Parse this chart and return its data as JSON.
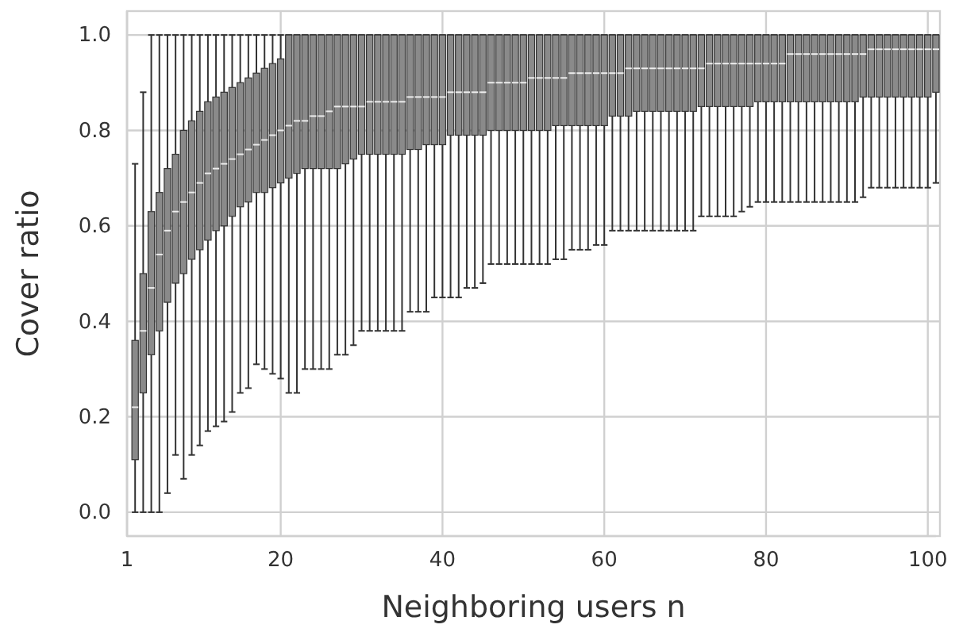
{
  "chart_data": {
    "type": "box",
    "xlabel": "Neighboring users n",
    "ylabel": "Cover ratio",
    "grid": true,
    "categories": [
      "1",
      null,
      null,
      null,
      null,
      null,
      null,
      null,
      null,
      null,
      null,
      null,
      null,
      null,
      null,
      null,
      null,
      null,
      null,
      "20",
      null,
      null,
      null,
      null,
      null,
      null,
      null,
      null,
      null,
      null,
      null,
      null,
      null,
      null,
      null,
      null,
      null,
      null,
      null,
      "40",
      null,
      null,
      null,
      null,
      null,
      null,
      null,
      null,
      null,
      null,
      null,
      null,
      null,
      null,
      null,
      null,
      null,
      null,
      null,
      "60",
      null,
      null,
      null,
      null,
      null,
      null,
      null,
      null,
      null,
      null,
      null,
      null,
      null,
      null,
      null,
      null,
      null,
      null,
      null,
      "80",
      null,
      null,
      null,
      null,
      null,
      null,
      null,
      null,
      null,
      null,
      null,
      null,
      null,
      null,
      null,
      null,
      null,
      null,
      null,
      "100",
      null
    ],
    "ylim": [
      -0.05,
      1.05
    ],
    "yticks": [
      {
        "value": 0,
        "label": "0.0"
      },
      {
        "value": 0.2,
        "label": "0.2"
      },
      {
        "value": 0.4,
        "label": "0.4"
      },
      {
        "value": 0.6,
        "label": "0.6"
      },
      {
        "value": 0.8,
        "label": "0.8"
      },
      {
        "value": 1,
        "label": "1.0"
      }
    ],
    "series": [
      {
        "color": "#8a8a8a",
        "boxes": [
          null,
          {
            "low": 0,
            "q1": 0.11,
            "median": 0.22,
            "q3": 0.36,
            "high": 0.73
          },
          {
            "low": 0,
            "q1": 0.25,
            "median": 0.38,
            "q3": 0.5,
            "high": 0.88
          },
          {
            "low": 0,
            "q1": 0.33,
            "median": 0.47,
            "q3": 0.63,
            "high": 1
          },
          {
            "low": 0,
            "q1": 0.38,
            "median": 0.54,
            "q3": 0.67,
            "high": 1
          },
          {
            "low": 0.04,
            "q1": 0.44,
            "median": 0.59,
            "q3": 0.72,
            "high": 1
          },
          {
            "low": 0.12,
            "q1": 0.48,
            "median": 0.63,
            "q3": 0.75,
            "high": 1
          },
          {
            "low": 0.07,
            "q1": 0.5,
            "median": 0.65,
            "q3": 0.8,
            "high": 1
          },
          {
            "low": 0.12,
            "q1": 0.53,
            "median": 0.67,
            "q3": 0.82,
            "high": 1
          },
          {
            "low": 0.14,
            "q1": 0.55,
            "median": 0.69,
            "q3": 0.84,
            "high": 1
          },
          {
            "low": 0.17,
            "q1": 0.57,
            "median": 0.71,
            "q3": 0.86,
            "high": 1
          },
          {
            "low": 0.18,
            "q1": 0.59,
            "median": 0.72,
            "q3": 0.87,
            "high": 1
          },
          {
            "low": 0.19,
            "q1": 0.6,
            "median": 0.73,
            "q3": 0.88,
            "high": 1
          },
          {
            "low": 0.21,
            "q1": 0.62,
            "median": 0.74,
            "q3": 0.89,
            "high": 1
          },
          {
            "low": 0.25,
            "q1": 0.64,
            "median": 0.75,
            "q3": 0.9,
            "high": 1
          },
          {
            "low": 0.26,
            "q1": 0.65,
            "median": 0.76,
            "q3": 0.91,
            "high": 1
          },
          {
            "low": 0.31,
            "q1": 0.67,
            "median": 0.77,
            "q3": 0.92,
            "high": 1
          },
          {
            "low": 0.3,
            "q1": 0.67,
            "median": 0.78,
            "q3": 0.93,
            "high": 1
          },
          {
            "low": 0.29,
            "q1": 0.68,
            "median": 0.79,
            "q3": 0.94,
            "high": 1
          },
          {
            "low": 0.28,
            "q1": 0.69,
            "median": 0.8,
            "q3": 0.95,
            "high": 1
          },
          {
            "low": 0.25,
            "q1": 0.7,
            "median": 0.81,
            "q3": 1,
            "high": 1
          },
          {
            "low": 0.25,
            "q1": 0.71,
            "median": 0.82,
            "q3": 1,
            "high": 1
          },
          {
            "low": 0.3,
            "q1": 0.72,
            "median": 0.82,
            "q3": 1,
            "high": 1
          },
          {
            "low": 0.3,
            "q1": 0.72,
            "median": 0.83,
            "q3": 1,
            "high": 1
          },
          {
            "low": 0.3,
            "q1": 0.72,
            "median": 0.83,
            "q3": 1,
            "high": 1
          },
          {
            "low": 0.3,
            "q1": 0.72,
            "median": 0.84,
            "q3": 1,
            "high": 1
          },
          {
            "low": 0.33,
            "q1": 0.72,
            "median": 0.85,
            "q3": 1,
            "high": 1
          },
          {
            "low": 0.33,
            "q1": 0.73,
            "median": 0.85,
            "q3": 1,
            "high": 1
          },
          {
            "low": 0.35,
            "q1": 0.74,
            "median": 0.85,
            "q3": 1,
            "high": 1
          },
          {
            "low": 0.38,
            "q1": 0.75,
            "median": 0.85,
            "q3": 1,
            "high": 1
          },
          {
            "low": 0.38,
            "q1": 0.75,
            "median": 0.86,
            "q3": 1,
            "high": 1
          },
          {
            "low": 0.38,
            "q1": 0.75,
            "median": 0.86,
            "q3": 1,
            "high": 1
          },
          {
            "low": 0.38,
            "q1": 0.75,
            "median": 0.86,
            "q3": 1,
            "high": 1
          },
          {
            "low": 0.38,
            "q1": 0.75,
            "median": 0.86,
            "q3": 1,
            "high": 1
          },
          {
            "low": 0.38,
            "q1": 0.75,
            "median": 0.86,
            "q3": 1,
            "high": 1
          },
          {
            "low": 0.42,
            "q1": 0.76,
            "median": 0.87,
            "q3": 1,
            "high": 1
          },
          {
            "low": 0.42,
            "q1": 0.76,
            "median": 0.87,
            "q3": 1,
            "high": 1
          },
          {
            "low": 0.42,
            "q1": 0.77,
            "median": 0.87,
            "q3": 1,
            "high": 1
          },
          {
            "low": 0.45,
            "q1": 0.77,
            "median": 0.87,
            "q3": 1,
            "high": 1
          },
          {
            "low": 0.45,
            "q1": 0.77,
            "median": 0.87,
            "q3": 1,
            "high": 1
          },
          {
            "low": 0.45,
            "q1": 0.79,
            "median": 0.88,
            "q3": 1,
            "high": 1
          },
          {
            "low": 0.45,
            "q1": 0.79,
            "median": 0.88,
            "q3": 1,
            "high": 1
          },
          {
            "low": 0.47,
            "q1": 0.79,
            "median": 0.88,
            "q3": 1,
            "high": 1
          },
          {
            "low": 0.47,
            "q1": 0.79,
            "median": 0.88,
            "q3": 1,
            "high": 1
          },
          {
            "low": 0.48,
            "q1": 0.79,
            "median": 0.88,
            "q3": 1,
            "high": 1
          },
          {
            "low": 0.52,
            "q1": 0.8,
            "median": 0.9,
            "q3": 1,
            "high": 1
          },
          {
            "low": 0.52,
            "q1": 0.8,
            "median": 0.9,
            "q3": 1,
            "high": 1
          },
          {
            "low": 0.52,
            "q1": 0.8,
            "median": 0.9,
            "q3": 1,
            "high": 1
          },
          {
            "low": 0.52,
            "q1": 0.8,
            "median": 0.9,
            "q3": 1,
            "high": 1
          },
          {
            "low": 0.52,
            "q1": 0.8,
            "median": 0.9,
            "q3": 1,
            "high": 1
          },
          {
            "low": 0.52,
            "q1": 0.8,
            "median": 0.91,
            "q3": 1,
            "high": 1
          },
          {
            "low": 0.52,
            "q1": 0.8,
            "median": 0.91,
            "q3": 1,
            "high": 1
          },
          {
            "low": 0.52,
            "q1": 0.8,
            "median": 0.91,
            "q3": 1,
            "high": 1
          },
          {
            "low": 0.53,
            "q1": 0.81,
            "median": 0.91,
            "q3": 1,
            "high": 1
          },
          {
            "low": 0.53,
            "q1": 0.81,
            "median": 0.91,
            "q3": 1,
            "high": 1
          },
          {
            "low": 0.55,
            "q1": 0.81,
            "median": 0.92,
            "q3": 1,
            "high": 1
          },
          {
            "low": 0.55,
            "q1": 0.81,
            "median": 0.92,
            "q3": 1,
            "high": 1
          },
          {
            "low": 0.55,
            "q1": 0.81,
            "median": 0.92,
            "q3": 1,
            "high": 1
          },
          {
            "low": 0.56,
            "q1": 0.81,
            "median": 0.92,
            "q3": 1,
            "high": 1
          },
          {
            "low": 0.56,
            "q1": 0.81,
            "median": 0.92,
            "q3": 1,
            "high": 1
          },
          {
            "low": 0.59,
            "q1": 0.83,
            "median": 0.92,
            "q3": 1,
            "high": 1
          },
          {
            "low": 0.59,
            "q1": 0.83,
            "median": 0.92,
            "q3": 1,
            "high": 1
          },
          {
            "low": 0.59,
            "q1": 0.83,
            "median": 0.93,
            "q3": 1,
            "high": 1
          },
          {
            "low": 0.59,
            "q1": 0.84,
            "median": 0.93,
            "q3": 1,
            "high": 1
          },
          {
            "low": 0.59,
            "q1": 0.84,
            "median": 0.93,
            "q3": 1,
            "high": 1
          },
          {
            "low": 0.59,
            "q1": 0.84,
            "median": 0.93,
            "q3": 1,
            "high": 1
          },
          {
            "low": 0.59,
            "q1": 0.84,
            "median": 0.93,
            "q3": 1,
            "high": 1
          },
          {
            "low": 0.59,
            "q1": 0.84,
            "median": 0.93,
            "q3": 1,
            "high": 1
          },
          {
            "low": 0.59,
            "q1": 0.84,
            "median": 0.93,
            "q3": 1,
            "high": 1
          },
          {
            "low": 0.59,
            "q1": 0.84,
            "median": 0.93,
            "q3": 1,
            "high": 1
          },
          {
            "low": 0.59,
            "q1": 0.84,
            "median": 0.93,
            "q3": 1,
            "high": 1
          },
          {
            "low": 0.62,
            "q1": 0.85,
            "median": 0.93,
            "q3": 1,
            "high": 1
          },
          {
            "low": 0.62,
            "q1": 0.85,
            "median": 0.94,
            "q3": 1,
            "high": 1
          },
          {
            "low": 0.62,
            "q1": 0.85,
            "median": 0.94,
            "q3": 1,
            "high": 1
          },
          {
            "low": 0.62,
            "q1": 0.85,
            "median": 0.94,
            "q3": 1,
            "high": 1
          },
          {
            "low": 0.62,
            "q1": 0.85,
            "median": 0.94,
            "q3": 1,
            "high": 1
          },
          {
            "low": 0.63,
            "q1": 0.85,
            "median": 0.94,
            "q3": 1,
            "high": 1
          },
          {
            "low": 0.64,
            "q1": 0.85,
            "median": 0.94,
            "q3": 1,
            "high": 1
          },
          {
            "low": 0.65,
            "q1": 0.86,
            "median": 0.94,
            "q3": 1,
            "high": 1
          },
          {
            "low": 0.65,
            "q1": 0.86,
            "median": 0.94,
            "q3": 1,
            "high": 1
          },
          {
            "low": 0.65,
            "q1": 0.86,
            "median": 0.94,
            "q3": 1,
            "high": 1
          },
          {
            "low": 0.65,
            "q1": 0.86,
            "median": 0.94,
            "q3": 1,
            "high": 1
          },
          {
            "low": 0.65,
            "q1": 0.86,
            "median": 0.96,
            "q3": 1,
            "high": 1
          },
          {
            "low": 0.65,
            "q1": 0.86,
            "median": 0.96,
            "q3": 1,
            "high": 1
          },
          {
            "low": 0.65,
            "q1": 0.86,
            "median": 0.96,
            "q3": 1,
            "high": 1
          },
          {
            "low": 0.65,
            "q1": 0.86,
            "median": 0.96,
            "q3": 1,
            "high": 1
          },
          {
            "low": 0.65,
            "q1": 0.86,
            "median": 0.96,
            "q3": 1,
            "high": 1
          },
          {
            "low": 0.65,
            "q1": 0.86,
            "median": 0.96,
            "q3": 1,
            "high": 1
          },
          {
            "low": 0.65,
            "q1": 0.86,
            "median": 0.96,
            "q3": 1,
            "high": 1
          },
          {
            "low": 0.65,
            "q1": 0.86,
            "median": 0.96,
            "q3": 1,
            "high": 1
          },
          {
            "low": 0.65,
            "q1": 0.86,
            "median": 0.96,
            "q3": 1,
            "high": 1
          },
          {
            "low": 0.66,
            "q1": 0.87,
            "median": 0.96,
            "q3": 1,
            "high": 1
          },
          {
            "low": 0.68,
            "q1": 0.87,
            "median": 0.97,
            "q3": 1,
            "high": 1
          },
          {
            "low": 0.68,
            "q1": 0.87,
            "median": 0.97,
            "q3": 1,
            "high": 1
          },
          {
            "low": 0.68,
            "q1": 0.87,
            "median": 0.97,
            "q3": 1,
            "high": 1
          },
          {
            "low": 0.68,
            "q1": 0.87,
            "median": 0.97,
            "q3": 1,
            "high": 1
          },
          {
            "low": 0.68,
            "q1": 0.87,
            "median": 0.97,
            "q3": 1,
            "high": 1
          },
          {
            "low": 0.68,
            "q1": 0.87,
            "median": 0.97,
            "q3": 1,
            "high": 1
          },
          {
            "low": 0.68,
            "q1": 0.87,
            "median": 0.97,
            "q3": 1,
            "high": 1
          },
          {
            "low": 0.68,
            "q1": 0.87,
            "median": 0.97,
            "q3": 1,
            "high": 1
          },
          {
            "low": 0.69,
            "q1": 0.88,
            "median": 0.97,
            "q3": 1,
            "high": 1
          }
        ]
      }
    ]
  }
}
